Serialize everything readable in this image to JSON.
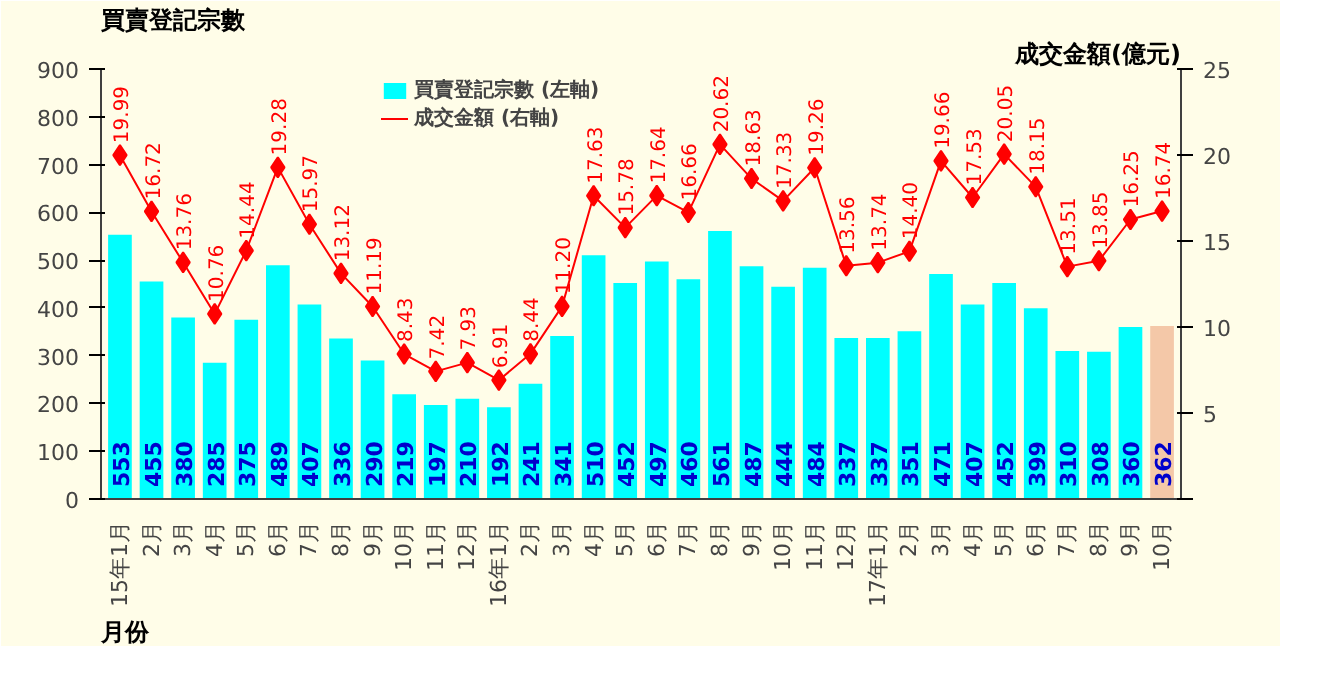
{
  "chart_data": {
    "type": "bar",
    "ylabel": "買賣登記宗數",
    "y2label": "成交金額(億元)",
    "xlabel": "月份",
    "categories": [
      "15年1月",
      "2月",
      "3月",
      "4月",
      "5月",
      "6月",
      "7月",
      "8月",
      "9月",
      "10月",
      "11月",
      "12月",
      "16年1月",
      "2月",
      "3月",
      "4月",
      "5月",
      "6月",
      "7月",
      "8月",
      "9月",
      "10月",
      "11月",
      "12月",
      "17年1月",
      "2月",
      "3月",
      "4月",
      "5月",
      "6月",
      "7月",
      "8月",
      "9月",
      "10月"
    ],
    "series": [
      {
        "name": "買賣登記宗數 (左軸)",
        "color": "#00ffff",
        "colors": [
          "#00ffff",
          "#00ffff",
          "#00ffff",
          "#00ffff",
          "#00ffff",
          "#00ffff",
          "#00ffff",
          "#00ffff",
          "#00ffff",
          "#00ffff",
          "#00ffff",
          "#00ffff",
          "#00ffff",
          "#00ffff",
          "#00ffff",
          "#00ffff",
          "#00ffff",
          "#00ffff",
          "#00ffff",
          "#00ffff",
          "#00ffff",
          "#00ffff",
          "#00ffff",
          "#00ffff",
          "#00ffff",
          "#00ffff",
          "#00ffff",
          "#00ffff",
          "#00ffff",
          "#00ffff",
          "#00ffff",
          "#00ffff",
          "#00ffff",
          "#f4c8a8"
        ],
        "values": [
          553,
          455,
          380,
          285,
          375,
          489,
          407,
          336,
          290,
          219,
          197,
          210,
          192,
          241,
          341,
          510,
          452,
          497,
          460,
          561,
          487,
          444,
          484,
          337,
          337,
          351,
          471,
          407,
          452,
          399,
          310,
          308,
          360,
          362
        ]
      },
      {
        "name": "成交金額 (右軸)",
        "type": "line",
        "axis": "y2",
        "color": "#ff0000",
        "marker": "diamond",
        "values": [
          19.99,
          16.72,
          13.76,
          10.76,
          14.44,
          19.28,
          15.97,
          13.12,
          11.19,
          8.43,
          7.42,
          7.93,
          6.91,
          8.44,
          11.2,
          17.63,
          15.78,
          17.64,
          16.66,
          20.62,
          18.63,
          17.33,
          19.26,
          13.56,
          13.74,
          14.4,
          19.66,
          17.53,
          20.05,
          18.15,
          13.51,
          13.85,
          16.25,
          16.74
        ],
        "value_labels": [
          "19.99",
          "16.72",
          "13.76",
          "10.76",
          "14.44",
          "19.28",
          "15.97",
          "13.12",
          "11.19",
          "8.43",
          "7.42",
          "7.93",
          "6.91",
          "8.44",
          "11.20",
          "17.63",
          "15.78",
          "17.64",
          "16.66",
          "20.62",
          "18.63",
          "17.33",
          "19.26",
          "13.56",
          "13.74",
          "14.40",
          "19.66",
          "17.53",
          "20.05",
          "18.15",
          "13.51",
          "13.85",
          "16.25",
          "16.74"
        ]
      }
    ],
    "ylim": [
      0,
      900
    ],
    "yticks": [
      0,
      100,
      200,
      300,
      400,
      500,
      600,
      700,
      800,
      900
    ],
    "y2lim": [
      0,
      25
    ],
    "y2ticks": [
      {
        "value": 0,
        "label": null
      },
      5,
      10,
      15,
      20,
      25
    ],
    "data_labels": true,
    "legend": "top",
    "grid": false
  }
}
